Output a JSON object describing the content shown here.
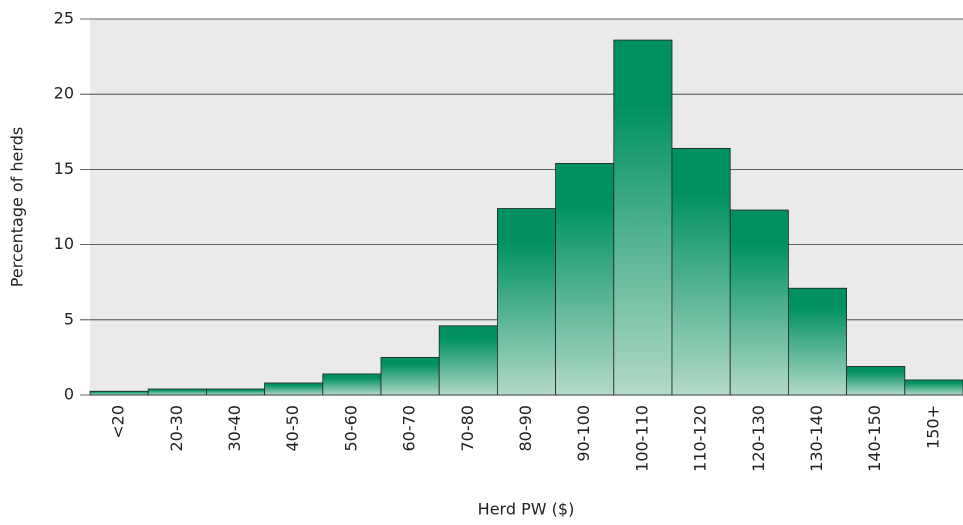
{
  "chart_data": {
    "type": "bar",
    "xlabel": "Herd PW ($)",
    "ylabel": "Percentage of herds",
    "categories": [
      "<20",
      "20-30",
      "30-40",
      "40-50",
      "50-60",
      "60-70",
      "70-80",
      "80-90",
      "90-100",
      "100-110",
      "110-120",
      "120-130",
      "130-140",
      "140-150",
      "150+"
    ],
    "values": [
      0.25,
      0.4,
      0.4,
      0.8,
      1.4,
      2.5,
      4.6,
      12.4,
      15.4,
      23.6,
      16.4,
      12.3,
      7.1,
      1.9,
      1.0
    ],
    "color": "#00915f",
    "gradient_color": "#b3d9c9",
    "ylim": [
      0,
      25
    ],
    "yticks": [
      0,
      5,
      10,
      15,
      20,
      25
    ],
    "grid": true
  }
}
